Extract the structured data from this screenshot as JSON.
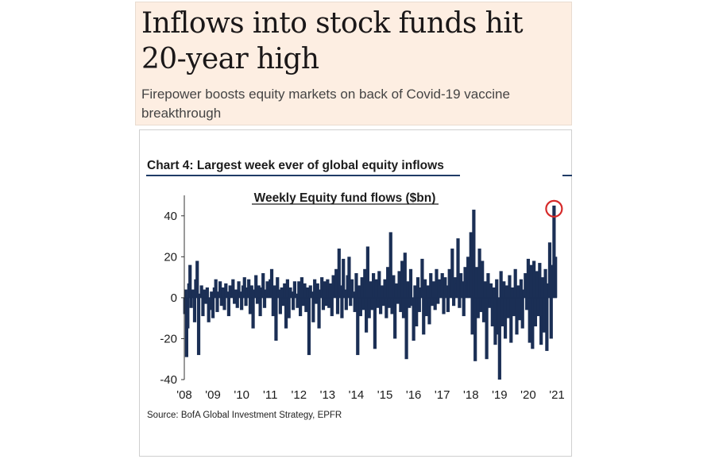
{
  "headline": {
    "title": "Inflows into stock funds hit 20-year high",
    "subtitle": "Firepower boosts equity markets on back of Covid-19 vaccine breakthrough"
  },
  "chart_heading": "Chart 4: Largest week ever of global equity inflows",
  "source": "Source: BofA Global Investment Strategy, EPFR",
  "colors": {
    "bar": "#1b2f55",
    "highlight": "#d62a2a",
    "axis": "#333333"
  },
  "chart_data": {
    "type": "bar",
    "title": "Weekly Equity fund flows ($bn)",
    "xlabel": "",
    "ylabel": "",
    "ylim": [
      -40,
      50
    ],
    "yticks": [
      40,
      20,
      0,
      -20,
      -40
    ],
    "xtick_labels": [
      "'08",
      "'09",
      "'10",
      "'11",
      "'12",
      "'13",
      "'14",
      "'15",
      "'16",
      "'17",
      "'18",
      "'19",
      "'20",
      "'21"
    ],
    "x_start": 2008.0,
    "x_end": 2021.0,
    "grid": false,
    "highlight": {
      "x": 2020.9,
      "value": 45,
      "marker": "red-circle"
    },
    "points": [
      [
        2008.02,
        -8
      ],
      [
        2008.05,
        4
      ],
      [
        2008.08,
        -29
      ],
      [
        2008.12,
        -15
      ],
      [
        2008.16,
        7
      ],
      [
        2008.2,
        16
      ],
      [
        2008.24,
        -5
      ],
      [
        2008.3,
        4
      ],
      [
        2008.36,
        -12
      ],
      [
        2008.4,
        9
      ],
      [
        2008.45,
        18
      ],
      [
        2008.5,
        -28
      ],
      [
        2008.55,
        2
      ],
      [
        2008.6,
        6
      ],
      [
        2008.65,
        -9
      ],
      [
        2008.7,
        4
      ],
      [
        2008.75,
        -3
      ],
      [
        2008.8,
        5
      ],
      [
        2008.85,
        -12
      ],
      [
        2008.9,
        -6
      ],
      [
        2008.95,
        3
      ],
      [
        2009.0,
        -10
      ],
      [
        2009.05,
        5
      ],
      [
        2009.1,
        9
      ],
      [
        2009.15,
        -7
      ],
      [
        2009.2,
        3
      ],
      [
        2009.25,
        8
      ],
      [
        2009.3,
        -4
      ],
      [
        2009.35,
        5
      ],
      [
        2009.4,
        -6
      ],
      [
        2009.45,
        7
      ],
      [
        2009.5,
        3
      ],
      [
        2009.55,
        -9
      ],
      [
        2009.6,
        6
      ],
      [
        2009.65,
        2
      ],
      [
        2009.7,
        9
      ],
      [
        2009.75,
        -3
      ],
      [
        2009.8,
        4
      ],
      [
        2009.85,
        -5
      ],
      [
        2009.9,
        8
      ],
      [
        2009.95,
        3
      ],
      [
        2010.0,
        -6
      ],
      [
        2010.05,
        6
      ],
      [
        2010.1,
        10
      ],
      [
        2010.15,
        -4
      ],
      [
        2010.2,
        5
      ],
      [
        2010.25,
        9
      ],
      [
        2010.3,
        -8
      ],
      [
        2010.35,
        6
      ],
      [
        2010.4,
        -15
      ],
      [
        2010.45,
        4
      ],
      [
        2010.5,
        11
      ],
      [
        2010.55,
        -3
      ],
      [
        2010.6,
        6
      ],
      [
        2010.65,
        -9
      ],
      [
        2010.7,
        5
      ],
      [
        2010.75,
        12
      ],
      [
        2010.8,
        -5
      ],
      [
        2010.85,
        4
      ],
      [
        2010.9,
        8
      ],
      [
        2010.95,
        2
      ],
      [
        2011.0,
        9
      ],
      [
        2011.05,
        14
      ],
      [
        2011.1,
        -9
      ],
      [
        2011.15,
        6
      ],
      [
        2011.2,
        -21
      ],
      [
        2011.25,
        10
      ],
      [
        2011.3,
        4
      ],
      [
        2011.35,
        -8
      ],
      [
        2011.4,
        5
      ],
      [
        2011.45,
        -4
      ],
      [
        2011.5,
        7
      ],
      [
        2011.55,
        -15
      ],
      [
        2011.6,
        9
      ],
      [
        2011.65,
        -10
      ],
      [
        2011.7,
        5
      ],
      [
        2011.75,
        3
      ],
      [
        2011.8,
        -6
      ],
      [
        2011.85,
        8
      ],
      [
        2011.9,
        2
      ],
      [
        2011.95,
        -5
      ],
      [
        2012.0,
        8
      ],
      [
        2012.05,
        -9
      ],
      [
        2012.1,
        10
      ],
      [
        2012.15,
        -4
      ],
      [
        2012.2,
        7
      ],
      [
        2012.25,
        -7
      ],
      [
        2012.3,
        5
      ],
      [
        2012.35,
        -28
      ],
      [
        2012.4,
        6
      ],
      [
        2012.45,
        3
      ],
      [
        2012.5,
        -12
      ],
      [
        2012.55,
        9
      ],
      [
        2012.6,
        -3
      ],
      [
        2012.65,
        7
      ],
      [
        2012.7,
        -15
      ],
      [
        2012.75,
        4
      ],
      [
        2012.8,
        10
      ],
      [
        2012.85,
        -6
      ],
      [
        2012.9,
        8
      ],
      [
        2012.95,
        -4
      ],
      [
        2013.0,
        9
      ],
      [
        2013.05,
        -5
      ],
      [
        2013.1,
        7
      ],
      [
        2013.15,
        -9
      ],
      [
        2013.2,
        11
      ],
      [
        2013.25,
        3
      ],
      [
        2013.3,
        14
      ],
      [
        2013.35,
        -8
      ],
      [
        2013.4,
        24
      ],
      [
        2013.45,
        6
      ],
      [
        2013.5,
        -10
      ],
      [
        2013.55,
        19
      ],
      [
        2013.6,
        4
      ],
      [
        2013.65,
        -6
      ],
      [
        2013.7,
        11
      ],
      [
        2013.75,
        20
      ],
      [
        2013.8,
        -4
      ],
      [
        2013.85,
        9
      ],
      [
        2013.9,
        3
      ],
      [
        2013.95,
        -7
      ],
      [
        2014.0,
        12
      ],
      [
        2014.05,
        -28
      ],
      [
        2014.1,
        6
      ],
      [
        2014.15,
        -9
      ],
      [
        2014.2,
        10
      ],
      [
        2014.25,
        -6
      ],
      [
        2014.3,
        14
      ],
      [
        2014.35,
        -17
      ],
      [
        2014.4,
        25
      ],
      [
        2014.45,
        -10
      ],
      [
        2014.5,
        8
      ],
      [
        2014.55,
        -6
      ],
      [
        2014.6,
        12
      ],
      [
        2014.65,
        -25
      ],
      [
        2014.7,
        9
      ],
      [
        2014.75,
        -5
      ],
      [
        2014.8,
        13
      ],
      [
        2014.85,
        -8
      ],
      [
        2014.9,
        6
      ],
      [
        2014.95,
        -4
      ],
      [
        2015.0,
        9
      ],
      [
        2015.05,
        -10
      ],
      [
        2015.1,
        15
      ],
      [
        2015.15,
        -5
      ],
      [
        2015.2,
        32
      ],
      [
        2015.25,
        -8
      ],
      [
        2015.3,
        11
      ],
      [
        2015.35,
        -20
      ],
      [
        2015.4,
        7
      ],
      [
        2015.45,
        -3
      ],
      [
        2015.5,
        13
      ],
      [
        2015.55,
        -7
      ],
      [
        2015.6,
        18
      ],
      [
        2015.65,
        -10
      ],
      [
        2015.7,
        22
      ],
      [
        2015.75,
        -30
      ],
      [
        2015.8,
        8
      ],
      [
        2015.85,
        -5
      ],
      [
        2015.9,
        14
      ],
      [
        2015.95,
        -4
      ],
      [
        2016.0,
        -21
      ],
      [
        2016.05,
        6
      ],
      [
        2016.1,
        -14
      ],
      [
        2016.15,
        10
      ],
      [
        2016.2,
        -7
      ],
      [
        2016.25,
        5
      ],
      [
        2016.3,
        19
      ],
      [
        2016.35,
        -18
      ],
      [
        2016.4,
        9
      ],
      [
        2016.45,
        -9
      ],
      [
        2016.5,
        6
      ],
      [
        2016.55,
        -13
      ],
      [
        2016.6,
        12
      ],
      [
        2016.65,
        -4
      ],
      [
        2016.7,
        8
      ],
      [
        2016.75,
        -6
      ],
      [
        2016.8,
        14
      ],
      [
        2016.85,
        -3
      ],
      [
        2016.9,
        9
      ],
      [
        2016.95,
        6
      ],
      [
        2017.0,
        12
      ],
      [
        2017.05,
        -8
      ],
      [
        2017.1,
        10
      ],
      [
        2017.15,
        6
      ],
      [
        2017.2,
        -7
      ],
      [
        2017.25,
        14
      ],
      [
        2017.3,
        5
      ],
      [
        2017.35,
        24
      ],
      [
        2017.4,
        -4
      ],
      [
        2017.45,
        10
      ],
      [
        2017.5,
        7
      ],
      [
        2017.55,
        29
      ],
      [
        2017.6,
        -5
      ],
      [
        2017.65,
        12
      ],
      [
        2017.7,
        8
      ],
      [
        2017.75,
        -9
      ],
      [
        2017.8,
        15
      ],
      [
        2017.85,
        6
      ],
      [
        2017.9,
        20
      ],
      [
        2017.95,
        9
      ],
      [
        2018.0,
        32
      ],
      [
        2018.05,
        -18
      ],
      [
        2018.1,
        43
      ],
      [
        2018.15,
        -31
      ],
      [
        2018.2,
        15
      ],
      [
        2018.25,
        -10
      ],
      [
        2018.3,
        24
      ],
      [
        2018.35,
        -7
      ],
      [
        2018.4,
        18
      ],
      [
        2018.45,
        -12
      ],
      [
        2018.5,
        8
      ],
      [
        2018.55,
        -30
      ],
      [
        2018.6,
        12
      ],
      [
        2018.65,
        -5
      ],
      [
        2018.7,
        7
      ],
      [
        2018.75,
        -14
      ],
      [
        2018.8,
        5
      ],
      [
        2018.85,
        -23
      ],
      [
        2018.9,
        9
      ],
      [
        2018.95,
        -18
      ],
      [
        2019.0,
        -40
      ],
      [
        2019.05,
        13
      ],
      [
        2019.1,
        -14
      ],
      [
        2019.15,
        8
      ],
      [
        2019.2,
        -20
      ],
      [
        2019.25,
        6
      ],
      [
        2019.3,
        -10
      ],
      [
        2019.35,
        11
      ],
      [
        2019.4,
        -22
      ],
      [
        2019.45,
        5
      ],
      [
        2019.5,
        -9
      ],
      [
        2019.55,
        14
      ],
      [
        2019.6,
        -18
      ],
      [
        2019.65,
        6
      ],
      [
        2019.7,
        -11
      ],
      [
        2019.75,
        9
      ],
      [
        2019.8,
        -15
      ],
      [
        2019.85,
        4
      ],
      [
        2019.9,
        12
      ],
      [
        2019.95,
        -6
      ],
      [
        2020.0,
        19
      ],
      [
        2020.05,
        -22
      ],
      [
        2020.1,
        16
      ],
      [
        2020.15,
        -25
      ],
      [
        2020.2,
        18
      ],
      [
        2020.25,
        -14
      ],
      [
        2020.3,
        13
      ],
      [
        2020.35,
        -9
      ],
      [
        2020.4,
        17
      ],
      [
        2020.45,
        -23
      ],
      [
        2020.5,
        10
      ],
      [
        2020.55,
        -17
      ],
      [
        2020.6,
        14
      ],
      [
        2020.65,
        -26
      ],
      [
        2020.7,
        7
      ],
      [
        2020.75,
        27
      ],
      [
        2020.8,
        -20
      ],
      [
        2020.85,
        16
      ],
      [
        2020.9,
        45
      ],
      [
        2020.95,
        20
      ]
    ]
  }
}
